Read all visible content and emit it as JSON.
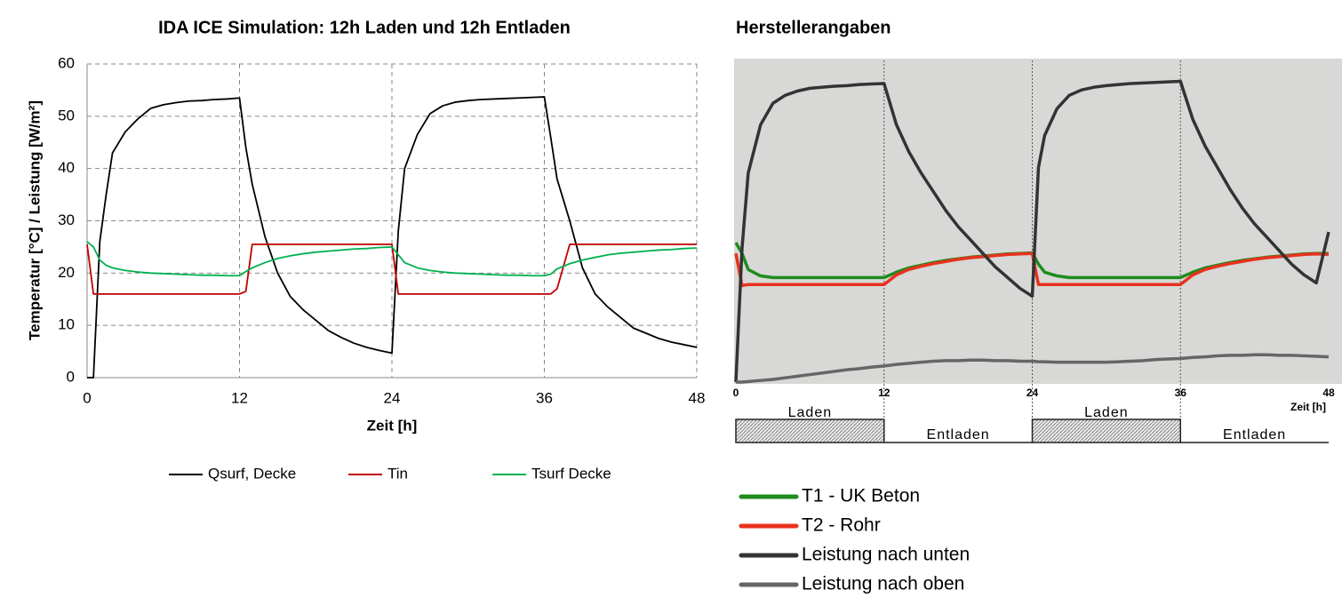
{
  "chart_data": [
    {
      "type": "line",
      "title": "IDA ICE Simulation: 12h Laden und 12h Entladen",
      "x_label": "Zeit [h]",
      "y_label": "Temperatur [°C] / Leistung [W/m²]",
      "x": [
        0,
        0.5,
        1,
        1.5,
        2,
        3,
        4,
        5,
        6,
        7,
        8,
        9,
        10,
        11,
        12,
        12.5,
        13,
        14,
        15,
        16,
        17,
        18,
        19,
        20,
        21,
        22,
        23,
        24,
        24.5,
        25,
        26,
        27,
        28,
        29,
        30,
        31,
        32,
        33,
        34,
        35,
        36,
        36.5,
        37,
        38,
        39,
        40,
        41,
        42,
        43,
        44,
        45,
        46,
        47,
        48
      ],
      "xlim": [
        0,
        48
      ],
      "xticks": [
        0,
        12,
        24,
        36,
        48
      ],
      "ylim": [
        0,
        60
      ],
      "yticks": [
        0,
        10,
        20,
        30,
        40,
        50,
        60
      ],
      "grid": true,
      "series": [
        {
          "name": "Qsurf, Decke",
          "color": "#000000",
          "values": [
            0,
            0,
            26,
            35,
            43,
            47,
            49.5,
            51.5,
            52.2,
            52.6,
            52.9,
            53,
            53.2,
            53.3,
            53.5,
            44,
            37,
            27,
            20,
            15.5,
            13,
            11,
            9,
            7.7,
            6.6,
            5.8,
            5.2,
            4.7,
            28,
            40,
            46.5,
            50.5,
            52,
            52.7,
            53,
            53.2,
            53.3,
            53.4,
            53.5,
            53.6,
            53.7,
            46,
            38,
            30,
            21,
            16,
            13.5,
            11.5,
            9.5,
            8.5,
            7.5,
            6.8,
            6.3,
            5.8
          ]
        },
        {
          "name": "Tin",
          "color": "#c00000",
          "values": [
            25.5,
            16,
            16,
            16,
            16,
            16,
            16,
            16,
            16,
            16,
            16,
            16,
            16,
            16,
            16,
            16.5,
            25.5,
            25.5,
            25.5,
            25.5,
            25.5,
            25.5,
            25.5,
            25.5,
            25.5,
            25.5,
            25.5,
            25.5,
            16,
            16,
            16,
            16,
            16,
            16,
            16,
            16,
            16,
            16,
            16,
            16,
            16,
            16,
            17,
            25.5,
            25.5,
            25.5,
            25.5,
            25.5,
            25.5,
            25.5,
            25.5,
            25.5,
            25.5,
            25.5
          ]
        },
        {
          "name": "Tsurf Decke",
          "color": "#00b050",
          "values": [
            26,
            25,
            22.5,
            21.5,
            21,
            20.5,
            20.2,
            20,
            19.9,
            19.8,
            19.7,
            19.6,
            19.6,
            19.5,
            19.5,
            20.3,
            21,
            22,
            22.8,
            23.3,
            23.7,
            24,
            24.2,
            24.4,
            24.6,
            24.7,
            24.9,
            25,
            23.5,
            22,
            21,
            20.5,
            20.2,
            20,
            19.9,
            19.8,
            19.7,
            19.6,
            19.6,
            19.5,
            19.5,
            19.8,
            20.8,
            21.8,
            22.5,
            23,
            23.5,
            23.8,
            24,
            24.2,
            24.4,
            24.5,
            24.7,
            24.8
          ]
        }
      ]
    },
    {
      "type": "line",
      "title": "Herstellerangaben",
      "x_label": "Zeit [h]",
      "x": [
        0,
        0.5,
        1,
        2,
        3,
        4,
        5,
        6,
        7,
        8,
        9,
        10,
        11,
        12,
        13,
        14,
        15,
        16,
        17,
        18,
        19,
        20,
        21,
        22,
        23,
        24,
        24.5,
        25,
        26,
        27,
        28,
        29,
        30,
        31,
        32,
        33,
        34,
        35,
        36,
        37,
        38,
        39,
        40,
        41,
        42,
        43,
        44,
        45,
        46,
        47,
        48
      ],
      "xlim": [
        0,
        48
      ],
      "xticks": [
        0,
        12,
        24,
        36,
        48
      ],
      "ylim": [
        0,
        60
      ],
      "phases": [
        {
          "label": "Laden",
          "from": 0,
          "to": 12
        },
        {
          "label": "Entladen",
          "from": 12,
          "to": 24
        },
        {
          "label": "Laden",
          "from": 24,
          "to": 36
        },
        {
          "label": "Entladen",
          "from": 36,
          "to": 48
        }
      ],
      "series": [
        {
          "name": "T1 - UK Beton",
          "color": "#1e8c1e",
          "values": [
            26,
            24,
            21,
            19.8,
            19.5,
            19.5,
            19.5,
            19.5,
            19.5,
            19.5,
            19.5,
            19.5,
            19.5,
            19.5,
            20.5,
            21.3,
            21.8,
            22.3,
            22.7,
            23,
            23.3,
            23.5,
            23.7,
            23.9,
            24,
            24.1,
            22,
            20.5,
            19.8,
            19.5,
            19.5,
            19.5,
            19.5,
            19.5,
            19.5,
            19.5,
            19.5,
            19.5,
            19.5,
            20.5,
            21.3,
            21.8,
            22.3,
            22.7,
            23,
            23.3,
            23.5,
            23.7,
            23.9,
            24,
            24
          ]
        },
        {
          "name": "T2 - Rohr",
          "color": "#e8321e",
          "values": [
            24,
            18,
            18.2,
            18.2,
            18.2,
            18.2,
            18.2,
            18.2,
            18.2,
            18.2,
            18.2,
            18.2,
            18.2,
            18.2,
            20,
            21,
            21.6,
            22.1,
            22.5,
            22.9,
            23.2,
            23.4,
            23.6,
            23.8,
            23.9,
            24,
            18.2,
            18.2,
            18.2,
            18.2,
            18.2,
            18.2,
            18.2,
            18.2,
            18.2,
            18.2,
            18.2,
            18.2,
            18.2,
            20,
            21,
            21.6,
            22.1,
            22.5,
            22.9,
            23.2,
            23.4,
            23.6,
            23.8,
            23.9,
            23.8
          ]
        },
        {
          "name": "Leistung nach unten",
          "color": "#333333",
          "values": [
            0,
            25,
            39,
            48,
            52,
            53.5,
            54.3,
            54.8,
            55,
            55.2,
            55.3,
            55.5,
            55.6,
            55.7,
            48,
            43,
            39,
            35.5,
            32,
            29,
            26.5,
            24,
            21.5,
            19.5,
            17.5,
            16,
            40,
            46,
            51,
            53.5,
            54.5,
            55,
            55.3,
            55.5,
            55.7,
            55.8,
            55.9,
            56,
            56.1,
            49,
            44,
            40,
            36,
            32.5,
            29.5,
            27,
            24.5,
            22,
            20,
            18.5,
            28
          ]
        },
        {
          "name": "Leistung nach oben",
          "color": "#666666",
          "values": [
            0,
            0,
            0.1,
            0.3,
            0.5,
            0.8,
            1.1,
            1.4,
            1.7,
            2,
            2.3,
            2.5,
            2.8,
            3,
            3.3,
            3.5,
            3.7,
            3.9,
            4,
            4,
            4.1,
            4.1,
            4,
            4,
            3.9,
            3.9,
            3.8,
            3.8,
            3.7,
            3.7,
            3.7,
            3.7,
            3.7,
            3.8,
            3.9,
            4,
            4.2,
            4.3,
            4.4,
            4.6,
            4.7,
            4.9,
            5,
            5,
            5.1,
            5.1,
            5,
            5,
            4.9,
            4.8,
            4.7
          ]
        }
      ]
    }
  ]
}
